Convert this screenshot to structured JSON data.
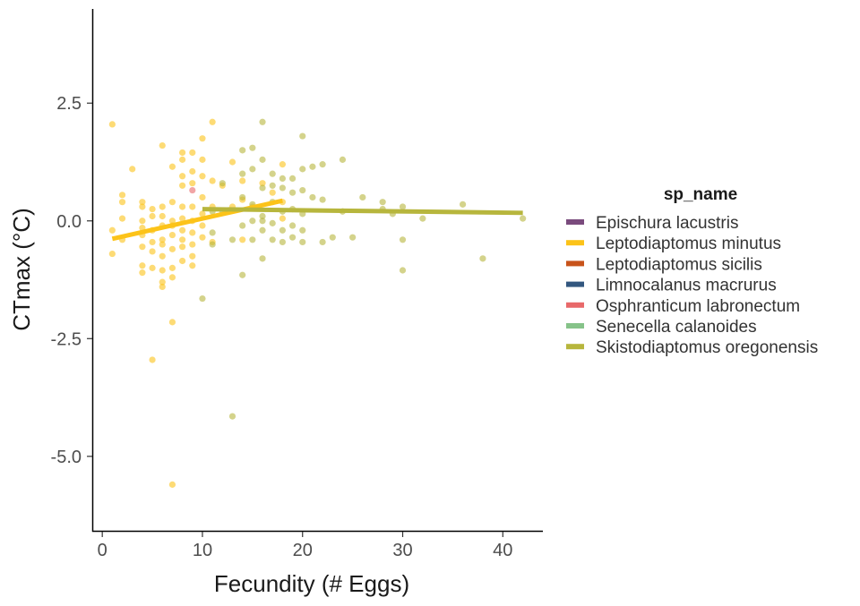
{
  "chart_data": {
    "type": "scatter",
    "xlabel": "Fecundity (# Eggs)",
    "ylabel": "CTmax (°C)",
    "xlim": [
      -1,
      44
    ],
    "ylim": [
      -6.6,
      4.5
    ],
    "x_ticks": [
      0,
      10,
      20,
      30,
      40
    ],
    "x_tick_labels": [
      "0",
      "10",
      "20",
      "30",
      "40"
    ],
    "y_ticks": [
      -5,
      -2.5,
      0,
      2.5
    ],
    "y_tick_labels": [
      "-5.0",
      "-2.5",
      "0.0",
      "2.5"
    ],
    "grid": false,
    "legend": {
      "title": "sp_name",
      "placement": "right",
      "entries": [
        {
          "name": "Epischura lacustris",
          "color": "#7a4b7d"
        },
        {
          "name": "Leptodiaptomus minutus",
          "color": "#fcc319"
        },
        {
          "name": "Leptodiaptomus sicilis",
          "color": "#c8531a"
        },
        {
          "name": "Limnocalanus macrurus",
          "color": "#33577f"
        },
        {
          "name": "Osphranticum labronectum",
          "color": "#e8696a"
        },
        {
          "name": "Senecella calanoides",
          "color": "#86c389"
        },
        {
          "name": "Skistodiaptomus oregonensis",
          "color": "#b7b63d"
        }
      ]
    },
    "series": [
      {
        "name": "Leptodiaptomus minutus",
        "color": "#fcc319",
        "points": [
          [
            1,
            2.05
          ],
          [
            1,
            -0.7
          ],
          [
            1,
            -0.2
          ],
          [
            2,
            0.55
          ],
          [
            2,
            0.4
          ],
          [
            2,
            0.05
          ],
          [
            2,
            -0.4
          ],
          [
            3,
            1.1
          ],
          [
            4,
            0.4
          ],
          [
            4,
            0.3
          ],
          [
            4,
            0.0
          ],
          [
            4,
            -0.15
          ],
          [
            4,
            -0.3
          ],
          [
            4,
            -0.55
          ],
          [
            4,
            -0.95
          ],
          [
            4,
            -1.1
          ],
          [
            5,
            0.25
          ],
          [
            5,
            0.1
          ],
          [
            5,
            -0.2
          ],
          [
            5,
            -0.45
          ],
          [
            5,
            -0.65
          ],
          [
            5,
            -1.0
          ],
          [
            5,
            -2.95
          ],
          [
            6,
            1.6
          ],
          [
            6,
            0.3
          ],
          [
            6,
            0.1
          ],
          [
            6,
            -0.1
          ],
          [
            6,
            -0.4
          ],
          [
            6,
            -0.5
          ],
          [
            6,
            -0.75
          ],
          [
            6,
            -1.05
          ],
          [
            6,
            -1.3
          ],
          [
            6,
            -1.4
          ],
          [
            7,
            1.15
          ],
          [
            7,
            0.4
          ],
          [
            7,
            0.0
          ],
          [
            7,
            -0.1
          ],
          [
            7,
            -0.3
          ],
          [
            7,
            -0.6
          ],
          [
            7,
            -1.0
          ],
          [
            7,
            -1.2
          ],
          [
            7,
            -2.15
          ],
          [
            7,
            -5.6
          ],
          [
            8,
            1.45
          ],
          [
            8,
            1.3
          ],
          [
            8,
            0.95
          ],
          [
            8,
            0.75
          ],
          [
            8,
            0.3
          ],
          [
            8,
            0.05
          ],
          [
            8,
            -0.2
          ],
          [
            8,
            -0.4
          ],
          [
            8,
            -0.55
          ],
          [
            8,
            -0.85
          ],
          [
            9,
            1.45
          ],
          [
            9,
            1.05
          ],
          [
            9,
            0.8
          ],
          [
            9,
            0.3
          ],
          [
            9,
            0.0
          ],
          [
            9,
            -0.25
          ],
          [
            9,
            -0.5
          ],
          [
            9,
            -0.75
          ],
          [
            9,
            -0.95
          ],
          [
            10,
            1.75
          ],
          [
            10,
            1.3
          ],
          [
            10,
            0.95
          ],
          [
            10,
            0.5
          ],
          [
            10,
            0.15
          ],
          [
            10,
            -0.1
          ],
          [
            10,
            -0.35
          ],
          [
            11,
            2.1
          ],
          [
            11,
            0.85
          ],
          [
            11,
            0.3
          ],
          [
            11,
            -0.45
          ],
          [
            12,
            0.75
          ],
          [
            13,
            1.25
          ],
          [
            13,
            0.3
          ],
          [
            14,
            0.85
          ],
          [
            14,
            0.45
          ],
          [
            14,
            -0.4
          ],
          [
            15,
            0.3
          ],
          [
            16,
            0.8
          ],
          [
            17,
            0.6
          ],
          [
            18,
            1.2
          ],
          [
            18,
            0.4
          ],
          [
            18,
            0.05
          ]
        ]
      },
      {
        "name": "Osphranticum labronectum",
        "color": "#e8696a",
        "points": [
          [
            9,
            0.65
          ]
        ]
      },
      {
        "name": "Skistodiaptomus oregonensis",
        "color": "#b7b63d",
        "points": [
          [
            10,
            -1.65
          ],
          [
            11,
            0.2
          ],
          [
            11,
            -0.25
          ],
          [
            11,
            -0.5
          ],
          [
            12,
            0.8
          ],
          [
            12,
            0.2
          ],
          [
            13,
            -0.4
          ],
          [
            13,
            -4.15
          ],
          [
            14,
            1.5
          ],
          [
            14,
            1.0
          ],
          [
            14,
            0.5
          ],
          [
            14,
            -0.1
          ],
          [
            14,
            -1.15
          ],
          [
            15,
            1.55
          ],
          [
            15,
            1.1
          ],
          [
            15,
            0.35
          ],
          [
            15,
            0.0
          ],
          [
            15,
            -0.4
          ],
          [
            16,
            2.1
          ],
          [
            16,
            1.3
          ],
          [
            16,
            0.7
          ],
          [
            16,
            0.1
          ],
          [
            16,
            0.0
          ],
          [
            16,
            -0.2
          ],
          [
            16,
            -0.8
          ],
          [
            17,
            1.0
          ],
          [
            17,
            0.75
          ],
          [
            17,
            0.4
          ],
          [
            17,
            -0.05
          ],
          [
            17,
            -0.4
          ],
          [
            18,
            0.9
          ],
          [
            18,
            0.7
          ],
          [
            18,
            0.2
          ],
          [
            18,
            -0.2
          ],
          [
            18,
            -0.45
          ],
          [
            19,
            0.9
          ],
          [
            19,
            0.6
          ],
          [
            19,
            0.25
          ],
          [
            19,
            -0.1
          ],
          [
            19,
            -0.35
          ],
          [
            20,
            1.8
          ],
          [
            20,
            1.1
          ],
          [
            20,
            0.65
          ],
          [
            20,
            0.15
          ],
          [
            20,
            -0.2
          ],
          [
            20,
            -0.45
          ],
          [
            21,
            1.15
          ],
          [
            21,
            0.5
          ],
          [
            22,
            1.2
          ],
          [
            22,
            0.45
          ],
          [
            22,
            -0.45
          ],
          [
            23,
            -0.35
          ],
          [
            24,
            1.3
          ],
          [
            24,
            0.2
          ],
          [
            25,
            -0.35
          ],
          [
            26,
            0.5
          ],
          [
            28,
            0.4
          ],
          [
            28,
            0.25
          ],
          [
            29,
            0.15
          ],
          [
            30,
            0.3
          ],
          [
            30,
            -0.4
          ],
          [
            30,
            -1.05
          ],
          [
            32,
            0.05
          ],
          [
            36,
            0.35
          ],
          [
            38,
            -0.8
          ],
          [
            42,
            0.05
          ]
        ]
      }
    ],
    "fit_lines": [
      {
        "name": "Leptodiaptomus minutus",
        "color": "#fcc319",
        "x": [
          1,
          18
        ],
        "y": [
          -0.38,
          0.43
        ]
      },
      {
        "name": "Skistodiaptomus oregonensis",
        "color": "#b7b63d",
        "x": [
          10,
          42
        ],
        "y": [
          0.25,
          0.17
        ]
      }
    ]
  }
}
